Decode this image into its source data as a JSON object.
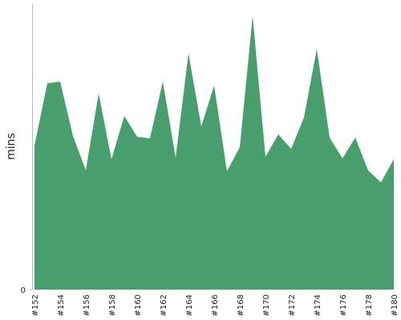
{
  "chart_data": {
    "type": "area",
    "y_label": "mins",
    "color": "#489e6d",
    "categories": [
      "#152",
      null,
      "#154",
      null,
      "#156",
      null,
      "#158",
      null,
      "#160",
      null,
      "#162",
      null,
      "#164",
      null,
      "#166",
      null,
      "#168",
      null,
      "#170",
      null,
      "#172",
      null,
      "#174",
      null,
      "#176",
      null,
      "#178",
      null,
      "#180"
    ],
    "values": [
      18.0,
      25.8,
      26.0,
      19.2,
      14.9,
      24.5,
      16.3,
      21.7,
      19.1,
      18.9,
      26.0,
      16.5,
      29.5,
      20.4,
      25.5,
      14.8,
      17.8,
      34.2,
      16.6,
      19.4,
      17.6,
      21.5,
      30.1,
      19.0,
      16.4,
      19.0,
      14.9,
      13.4,
      16.3
    ],
    "ylim": [
      0,
      36
    ],
    "yticks": [
      0
    ]
  }
}
